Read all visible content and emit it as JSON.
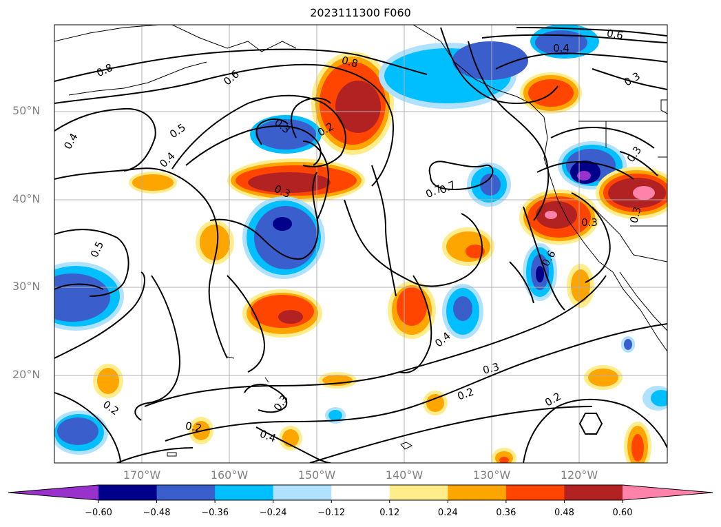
{
  "title": "2023111300 F060",
  "lat_labels": [
    "50°N",
    "40°N",
    "30°N",
    "20°N"
  ],
  "lon_labels": [
    "170°W",
    "160°W",
    "150°W",
    "140°W",
    "130°W",
    "120°W"
  ],
  "contour_labels": [
    "0.8",
    "0.6",
    "0.8",
    "0.4",
    "0.6",
    "0.3",
    "0.7",
    "0.5",
    "0.4",
    "0.3",
    "0.2",
    "0.4",
    "0.3",
    "0.5",
    "0.7",
    "0.3",
    "0.3",
    "0.6",
    "0.4",
    "0.3",
    "0.2",
    "0.3",
    "0.4",
    "0.2",
    "0.2",
    "0.2",
    "0.3"
  ],
  "colorbar": {
    "ticks": [
      "−0.60",
      "−0.48",
      "−0.36",
      "−0.24",
      "−0.12",
      "0.12",
      "0.24",
      "0.36",
      "0.48",
      "0.60"
    ],
    "colors": [
      "#9932cc",
      "#00008b",
      "#3a5fcd",
      "#00bfff",
      "#b0e2ff",
      "#ffffff",
      "#ffec8b",
      "#ffa500",
      "#ff4500",
      "#b22222",
      "#ff82ab"
    ]
  }
}
